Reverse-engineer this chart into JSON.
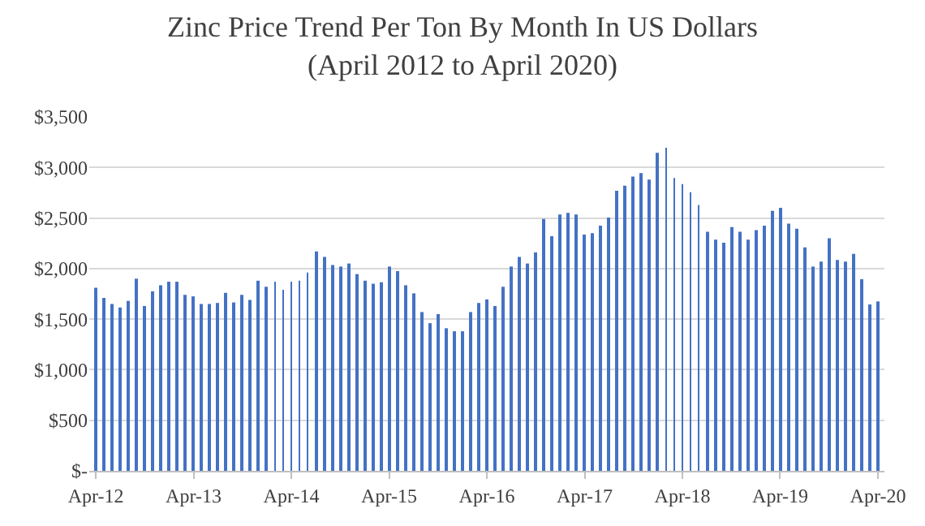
{
  "chart_data": {
    "type": "bar",
    "title": "Zinc Price Trend Per Ton By Month In US Dollars\n(April 2012 to April 2020)",
    "categories": [
      "Apr-12",
      null,
      null,
      null,
      null,
      null,
      null,
      null,
      null,
      null,
      null,
      null,
      "Apr-13",
      null,
      null,
      null,
      null,
      null,
      null,
      null,
      null,
      null,
      null,
      null,
      "Apr-14",
      null,
      null,
      null,
      null,
      null,
      null,
      null,
      null,
      null,
      null,
      null,
      "Apr-15",
      null,
      null,
      null,
      null,
      null,
      null,
      null,
      null,
      null,
      null,
      null,
      "Apr-16",
      null,
      null,
      null,
      null,
      null,
      null,
      null,
      null,
      null,
      null,
      null,
      "Apr-17",
      null,
      null,
      null,
      null,
      null,
      null,
      null,
      null,
      null,
      null,
      null,
      "Apr-18",
      null,
      null,
      null,
      null,
      null,
      null,
      null,
      null,
      null,
      null,
      null,
      "Apr-19",
      null,
      null,
      null,
      null,
      null,
      null,
      null,
      null,
      null,
      null,
      null,
      "Apr-20"
    ],
    "values": [
      1810,
      1710,
      1650,
      1615,
      1680,
      1900,
      1630,
      1775,
      1835,
      1870,
      1870,
      1740,
      1725,
      1650,
      1650,
      1660,
      1760,
      1665,
      1740,
      1690,
      1880,
      1820,
      1870,
      1790,
      1870,
      1880,
      1960,
      2170,
      2115,
      2035,
      2020,
      2050,
      1945,
      1880,
      1850,
      1865,
      2020,
      1975,
      1835,
      1755,
      1570,
      1460,
      1550,
      1410,
      1380,
      1380,
      1570,
      1660,
      1695,
      1630,
      1820,
      2020,
      2115,
      2050,
      2160,
      2490,
      2320,
      2535,
      2550,
      2535,
      2335,
      2350,
      2425,
      2505,
      2770,
      2820,
      2910,
      2945,
      2880,
      3145,
      3195,
      2895,
      2835,
      2755,
      2630,
      2365,
      2285,
      2255,
      2410,
      2365,
      2285,
      2380,
      2425,
      2570,
      2600,
      2445,
      2395,
      2210,
      2020,
      2070,
      2300,
      2085,
      2070,
      2145,
      1895,
      1645,
      1675
    ],
    "color": "#4472c4",
    "ylim": [
      0,
      3500
    ],
    "yticks": [
      {
        "value": 0,
        "label": "$-"
      },
      {
        "value": 500,
        "label": "$500"
      },
      {
        "value": 1000,
        "label": "$1,000"
      },
      {
        "value": 1500,
        "label": "$1,500"
      },
      {
        "value": 2000,
        "label": "$2,000"
      },
      {
        "value": 2500,
        "label": "$2,500"
      },
      {
        "value": 3000,
        "label": "$3,000"
      },
      {
        "value": 3500,
        "label": "$3,500"
      }
    ],
    "grid": "y"
  }
}
